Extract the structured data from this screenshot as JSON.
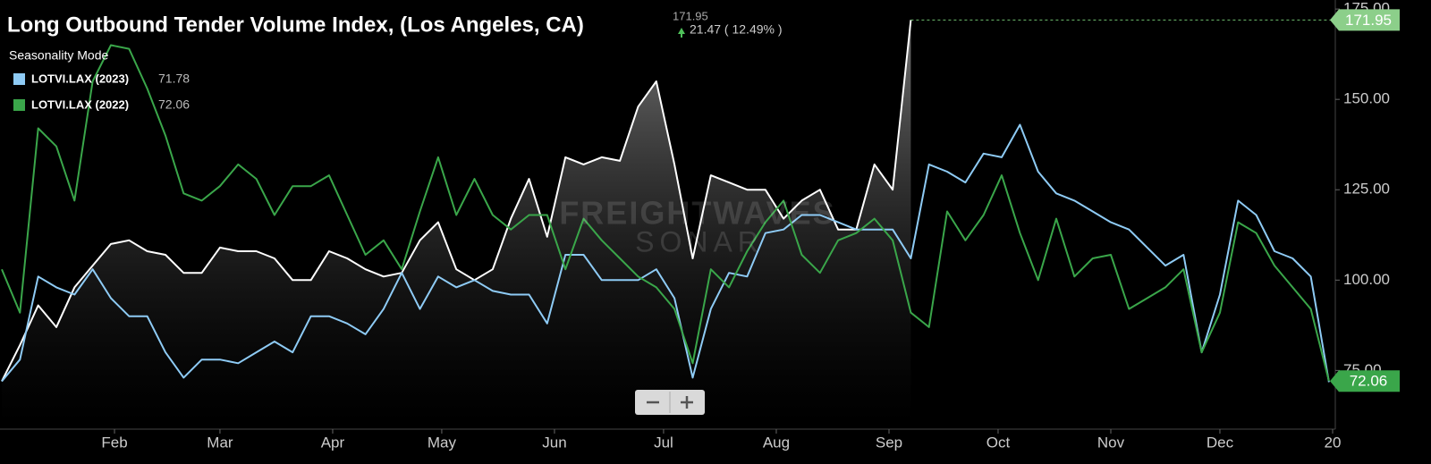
{
  "chart_data": {
    "type": "line",
    "title": "Long Outbound Tender Volume Index, (Los Angeles, CA)",
    "change_text": "21.47 ( 12.49% )",
    "subtitle": "Seasonality Mode",
    "watermark": [
      "FREIGHTWAVES",
      "SONAR"
    ],
    "legend": "top-left",
    "grid": false,
    "xlim": [
      0,
      366
    ],
    "xticks": [
      {
        "value": 31,
        "label": "Feb"
      },
      {
        "value": 60,
        "label": "Mar"
      },
      {
        "value": 91,
        "label": "Apr"
      },
      {
        "value": 121,
        "label": "May"
      },
      {
        "value": 152,
        "label": "Jun"
      },
      {
        "value": 182,
        "label": "Jul"
      },
      {
        "value": 213,
        "label": "Aug"
      },
      {
        "value": 244,
        "label": "Sep"
      },
      {
        "value": 274,
        "label": "Oct"
      },
      {
        "value": 305,
        "label": "Nov"
      },
      {
        "value": 335,
        "label": "Dec"
      },
      {
        "value": 366,
        "label": "20"
      }
    ],
    "ylim": [
      60,
      177.5
    ],
    "yticks": [
      {
        "value": 75,
        "label": "75.00"
      },
      {
        "value": 100,
        "label": "100.00"
      },
      {
        "value": 125,
        "label": "125.00"
      },
      {
        "value": 150,
        "label": "150.00"
      },
      {
        "value": 175,
        "label": "175.00"
      }
    ],
    "x": [
      0,
      5,
      10,
      15,
      20,
      25,
      30,
      35,
      40,
      45,
      50,
      55,
      60,
      65,
      70,
      75,
      80,
      85,
      90,
      95,
      100,
      105,
      110,
      115,
      120,
      125,
      130,
      135,
      140,
      145,
      150,
      155,
      160,
      165,
      170,
      175,
      180,
      185,
      190,
      195,
      200,
      205,
      210,
      215,
      220,
      225,
      230,
      235,
      240,
      245,
      250,
      255,
      260,
      265,
      270,
      275,
      280,
      285,
      290,
      295,
      300,
      305,
      310,
      315,
      320,
      325,
      330,
      335,
      340,
      345,
      350,
      355,
      360,
      365
    ],
    "series": [
      {
        "color": "#ffffff",
        "area": true,
        "values": [
          72,
          82,
          93,
          87,
          98,
          104,
          110,
          111,
          108,
          107,
          102,
          102,
          109,
          108,
          108,
          106,
          100,
          100,
          108,
          106,
          103,
          101,
          102,
          111,
          116,
          103,
          100,
          103,
          117,
          128,
          112,
          134,
          132,
          134,
          133,
          148,
          155,
          132,
          106,
          129,
          127,
          125,
          125,
          117,
          122,
          125,
          114,
          114,
          132,
          125,
          171.95,
          null,
          null,
          null,
          null,
          null,
          null,
          null,
          null,
          null,
          null,
          null,
          null,
          null,
          null,
          null,
          null,
          null,
          null,
          null,
          null,
          null,
          null,
          null
        ]
      },
      {
        "name": "LOTVI.LAX (2023)",
        "color": "#8ecbf5",
        "values": [
          72,
          78,
          101,
          98,
          96,
          103,
          95,
          90,
          90,
          80,
          73,
          78,
          78,
          77,
          80,
          83,
          80,
          90,
          90,
          88,
          85,
          92,
          102,
          92,
          101,
          98,
          100,
          97,
          96,
          96,
          88,
          107,
          107,
          100,
          100,
          100,
          103,
          95,
          73,
          92,
          102,
          101,
          113,
          114,
          118,
          118,
          116,
          114,
          114,
          114,
          106,
          132,
          130,
          127,
          135,
          134,
          143,
          130,
          124,
          122,
          119,
          116,
          114,
          109,
          104,
          107,
          80,
          96,
          122,
          118,
          108,
          106,
          101,
          71.78
        ]
      },
      {
        "name": "LOTVI.LAX (2022)",
        "color": "#3aa64a",
        "values": [
          103,
          91,
          142,
          137,
          122,
          155,
          165,
          164,
          153,
          140,
          124,
          122,
          126,
          132,
          128,
          118,
          126,
          126,
          129,
          118,
          107,
          111,
          103,
          119,
          134,
          118,
          128,
          118,
          114,
          118,
          118,
          103,
          117,
          111,
          106,
          101,
          98,
          92,
          77,
          103,
          98,
          108,
          116,
          122,
          107,
          102,
          111,
          113,
          117,
          111,
          91,
          87,
          119,
          111,
          118,
          129,
          113,
          100,
          117,
          101,
          106,
          107,
          92,
          95,
          98,
          103,
          80,
          91,
          116,
          113,
          104,
          98,
          92,
          72.06
        ]
      }
    ]
  }
}
